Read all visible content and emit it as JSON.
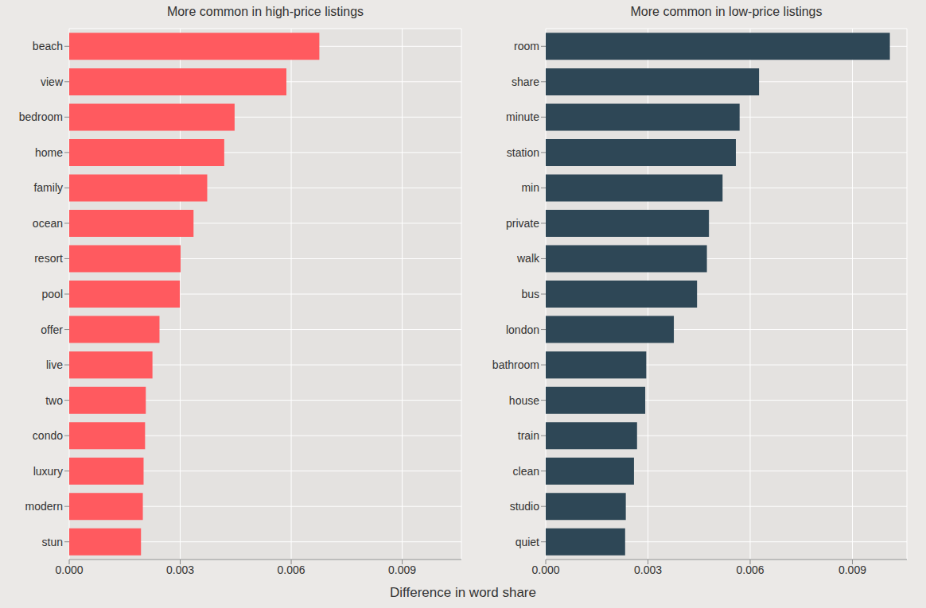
{
  "x_label": "Difference in word share",
  "chart_data": [
    {
      "type": "bar",
      "title": "More common in high-price listings",
      "orientation": "horizontal",
      "color": "#ff5a5f",
      "grid": true,
      "categories": [
        "beach",
        "view",
        "bedroom",
        "home",
        "family",
        "ocean",
        "resort",
        "pool",
        "offer",
        "live",
        "two",
        "condo",
        "luxury",
        "modern",
        "stun"
      ],
      "values": [
        0.00676,
        0.00587,
        0.00447,
        0.00419,
        0.00373,
        0.00336,
        0.00301,
        0.00299,
        0.00244,
        0.00225,
        0.00207,
        0.00205,
        0.00201,
        0.00199,
        0.00194
      ],
      "xlim": [
        0,
        0.0106
      ],
      "xticks": [
        {
          "value": 0,
          "label": "0.000"
        },
        0.003,
        0.006,
        0.009
      ]
    },
    {
      "type": "bar",
      "title": "More common in low-price listings",
      "orientation": "horizontal",
      "color": "#2e4756",
      "grid": true,
      "categories": [
        "room",
        "share",
        "minute",
        "station",
        "min",
        "private",
        "walk",
        "bus",
        "london",
        "bathroom",
        "house",
        "train",
        "clean",
        "studio",
        "quiet"
      ],
      "values": [
        0.0101,
        0.00626,
        0.00569,
        0.00558,
        0.00519,
        0.00479,
        0.00473,
        0.00444,
        0.00376,
        0.00295,
        0.00292,
        0.00268,
        0.00259,
        0.00235,
        0.00233
      ],
      "xlim": [
        0,
        0.0106
      ],
      "xticks": [
        {
          "value": 0,
          "label": "0.000"
        },
        0.003,
        0.006,
        0.009
      ]
    }
  ]
}
